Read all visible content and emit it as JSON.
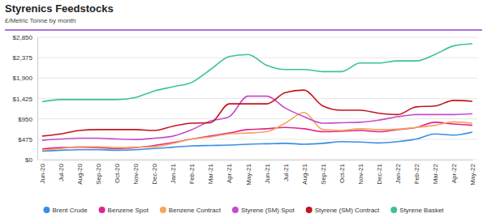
{
  "chart_data": {
    "type": "line",
    "title": "Styrenics Feedstocks",
    "subtitle": "£/Metric Tonne by month",
    "categories": [
      "Jun-20",
      "Jul-20",
      "Aug-20",
      "Sep-20",
      "Oct-20",
      "Nov-20",
      "Dec-20",
      "Jan-21",
      "Feb-21",
      "Mar-21",
      "Apr-21",
      "May-21",
      "Jun-21",
      "Jul-21",
      "Aug-21",
      "Sep-21",
      "Oct-21",
      "Nov-21",
      "Dec-21",
      "Jan-22",
      "Feb-22",
      "Mar-22",
      "Apr-22",
      "May-22"
    ],
    "series": [
      {
        "name": "Brent Crude",
        "color": "#3a8ee6",
        "values": [
          200,
          220,
          230,
          230,
          220,
          230,
          260,
          290,
          320,
          330,
          340,
          360,
          370,
          380,
          360,
          380,
          420,
          410,
          390,
          420,
          480,
          600,
          570,
          640
        ]
      },
      {
        "name": "Benzene Spot",
        "color": "#e3228c",
        "values": [
          250,
          280,
          290,
          280,
          260,
          280,
          330,
          400,
          480,
          550,
          620,
          700,
          720,
          750,
          720,
          650,
          660,
          680,
          650,
          700,
          750,
          870,
          830,
          800
        ]
      },
      {
        "name": "Benzene Contract",
        "color": "#f4a55e",
        "values": [
          220,
          260,
          300,
          300,
          280,
          290,
          300,
          380,
          480,
          530,
          600,
          620,
          650,
          850,
          1100,
          700,
          680,
          720,
          700,
          710,
          750,
          800,
          880,
          850
        ]
      },
      {
        "name": "Styrene (SM) Spot",
        "color": "#c64bcc",
        "values": [
          450,
          480,
          500,
          500,
          480,
          470,
          500,
          550,
          700,
          900,
          1000,
          1480,
          1480,
          1200,
          1000,
          850,
          860,
          870,
          920,
          1000,
          1050,
          1050,
          1050,
          1070
        ]
      },
      {
        "name": "Styrene (SM) Contract",
        "color": "#c3141d",
        "values": [
          550,
          600,
          680,
          700,
          700,
          700,
          680,
          780,
          850,
          860,
          1300,
          1300,
          1300,
          1560,
          1620,
          1250,
          1150,
          1150,
          1080,
          1050,
          1230,
          1250,
          1380,
          1360
        ]
      },
      {
        "name": "Styrene Basket",
        "color": "#3cc29a",
        "values": [
          1350,
          1400,
          1400,
          1400,
          1400,
          1450,
          1600,
          1700,
          1800,
          2100,
          2400,
          2450,
          2200,
          2100,
          2100,
          2050,
          2050,
          2250,
          2250,
          2300,
          2300,
          2450,
          2650,
          2700
        ]
      }
    ],
    "ylim": [
      0,
      2850
    ],
    "yticks": [
      {
        "value": 0,
        "label": "$0"
      },
      {
        "value": 475,
        "label": "$475"
      },
      {
        "value": 950,
        "label": "$950"
      },
      {
        "value": 1425,
        "label": "$1,425"
      },
      {
        "value": 1900,
        "label": "$1,900"
      },
      {
        "value": 2375,
        "label": "$2,375"
      },
      {
        "value": 2850,
        "label": "$2,850"
      }
    ],
    "grid": true,
    "legend": "bottom"
  }
}
